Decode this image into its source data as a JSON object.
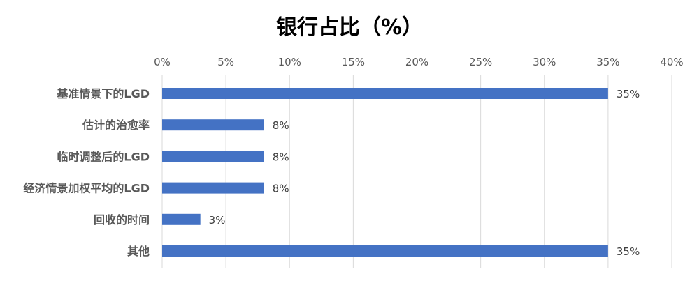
{
  "chart_data": {
    "type": "bar",
    "orientation": "horizontal",
    "title": "银行占比（%）",
    "categories": [
      "基准情景下的LGD",
      "估计的治愈率",
      "临时调整后的LGD",
      "经济情景加权平均的LGD",
      "回收的时间",
      "其他"
    ],
    "values": [
      35,
      8,
      8,
      8,
      3,
      35
    ],
    "data_labels": [
      "35%",
      "8%",
      "8%",
      "8%",
      "3%",
      "35%"
    ],
    "x_ticks": [
      0,
      5,
      10,
      15,
      20,
      25,
      30,
      35,
      40
    ],
    "x_tick_labels": [
      "0%",
      "5%",
      "10%",
      "15%",
      "20%",
      "25%",
      "30%",
      "35%",
      "40%"
    ],
    "xlim": [
      0,
      40
    ],
    "xaxis_position": "top",
    "grid": true,
    "legend": false,
    "bar_color": "#4472c4"
  }
}
